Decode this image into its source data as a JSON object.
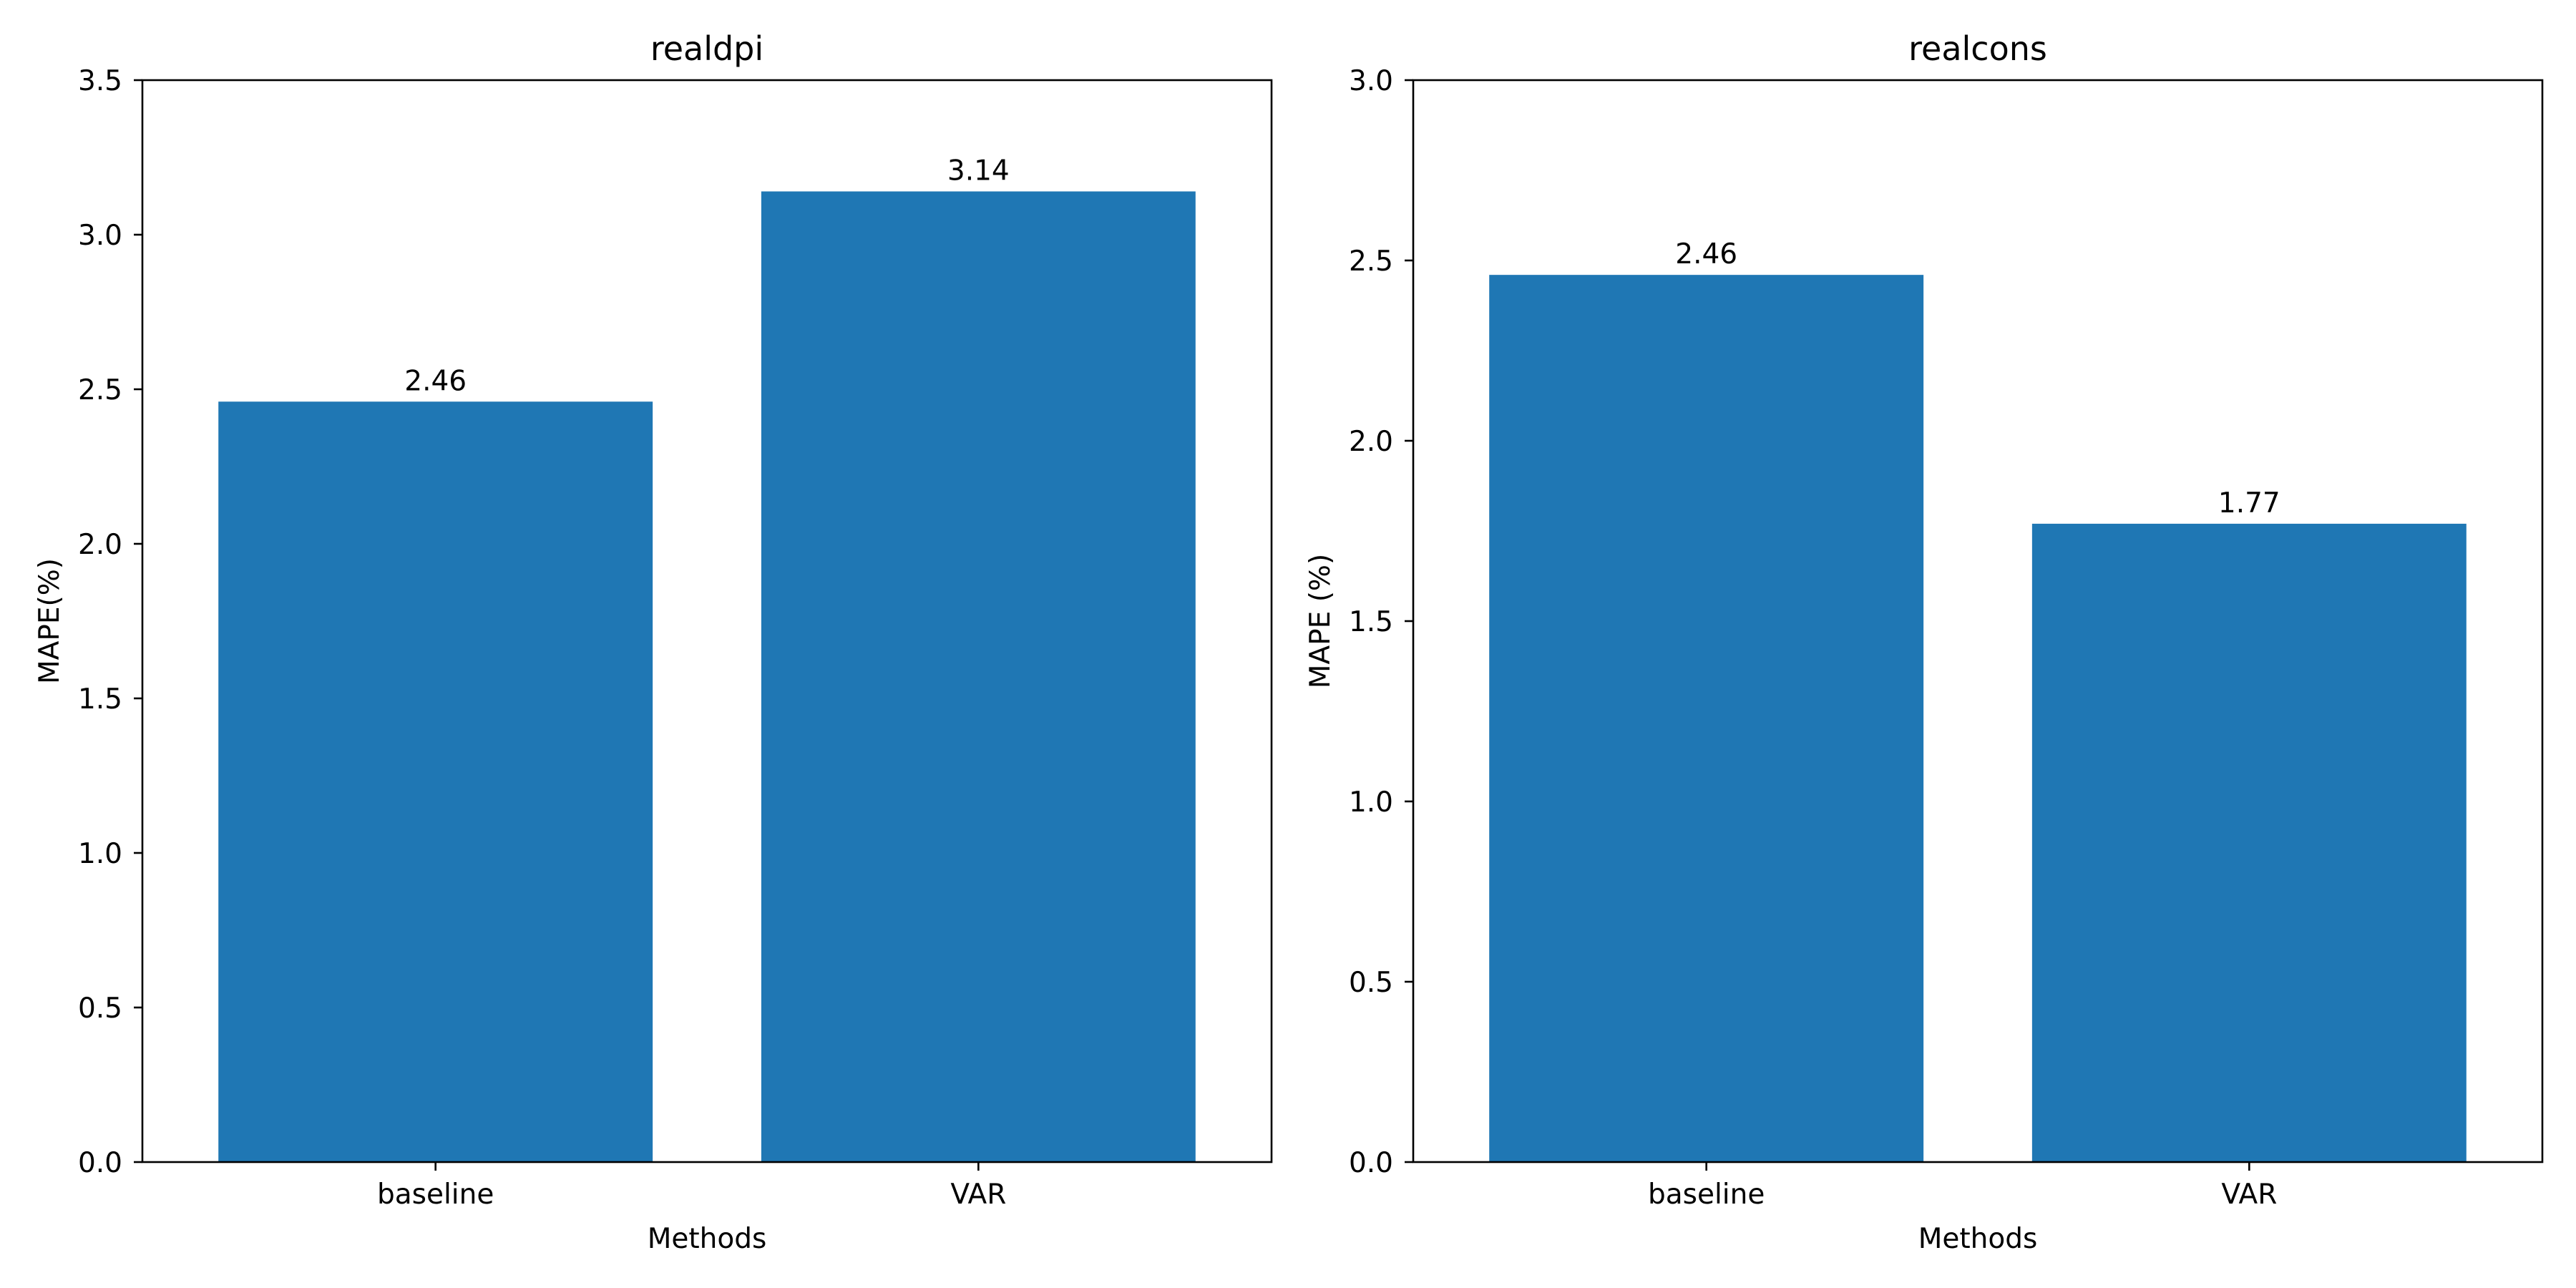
{
  "chart_data": [
    {
      "type": "bar",
      "title": "realdpi",
      "xlabel": "Methods",
      "ylabel": "MAPE(%)",
      "categories": [
        "baseline",
        "VAR"
      ],
      "values": [
        2.46,
        3.14
      ],
      "value_labels": [
        "2.46",
        "3.14"
      ],
      "ylim": [
        0,
        3.5
      ],
      "yticks": [
        "0.0",
        "0.5",
        "1.0",
        "1.5",
        "2.0",
        "2.5",
        "3.0",
        "3.5"
      ],
      "bar_color": "#1f77b4",
      "grid": false,
      "legend": "none"
    },
    {
      "type": "bar",
      "title": "realcons",
      "xlabel": "Methods",
      "ylabel": "MAPE (%)",
      "categories": [
        "baseline",
        "VAR"
      ],
      "values": [
        2.46,
        1.77
      ],
      "value_labels": [
        "2.46",
        "1.77"
      ],
      "ylim": [
        0,
        3.0
      ],
      "yticks": [
        "0.0",
        "0.5",
        "1.0",
        "1.5",
        "2.0",
        "2.5",
        "3.0"
      ],
      "bar_color": "#1f77b4",
      "grid": false,
      "legend": "none"
    }
  ]
}
